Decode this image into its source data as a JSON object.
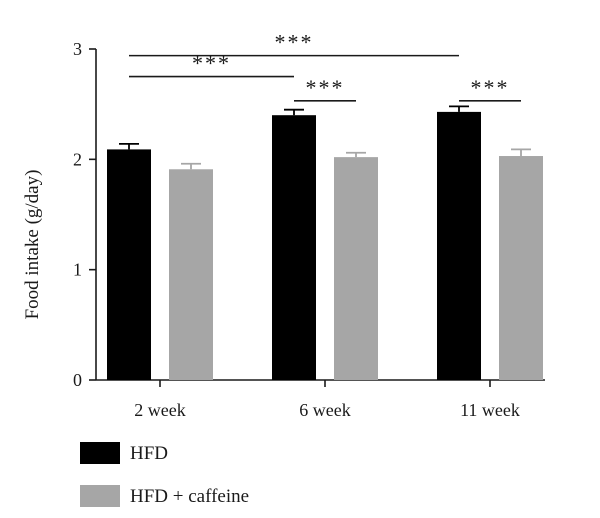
{
  "chart_data": {
    "type": "bar",
    "title": "",
    "xlabel": "",
    "ylabel": "Food intake (g/day)",
    "ylim": [
      0,
      3
    ],
    "yticks": [
      "0",
      "1",
      "2",
      "3"
    ],
    "categories": [
      "2 week",
      "6 week",
      "11 week"
    ],
    "series": [
      {
        "name": "HFD",
        "values": [
          2.09,
          2.4,
          2.43
        ],
        "errors": [
          0.05,
          0.05,
          0.05
        ],
        "color": "#000000"
      },
      {
        "name": "HFD + caffeine",
        "values": [
          1.91,
          2.02,
          2.03
        ],
        "errors": [
          0.05,
          0.04,
          0.06
        ],
        "color": "#a6a6a6"
      }
    ],
    "significance": [
      {
        "from": [
          0,
          0
        ],
        "to": [
          2,
          0
        ],
        "label": "***",
        "y": 2.94
      },
      {
        "from": [
          0,
          0
        ],
        "to": [
          1,
          0
        ],
        "label": "***",
        "y": 2.75
      },
      {
        "from": [
          1,
          0
        ],
        "to": [
          1,
          1
        ],
        "label": "***",
        "y": 2.53
      },
      {
        "from": [
          2,
          0
        ],
        "to": [
          2,
          1
        ],
        "label": "***",
        "y": 2.53
      }
    ],
    "grid": false,
    "legend_position": "bottom-left"
  }
}
